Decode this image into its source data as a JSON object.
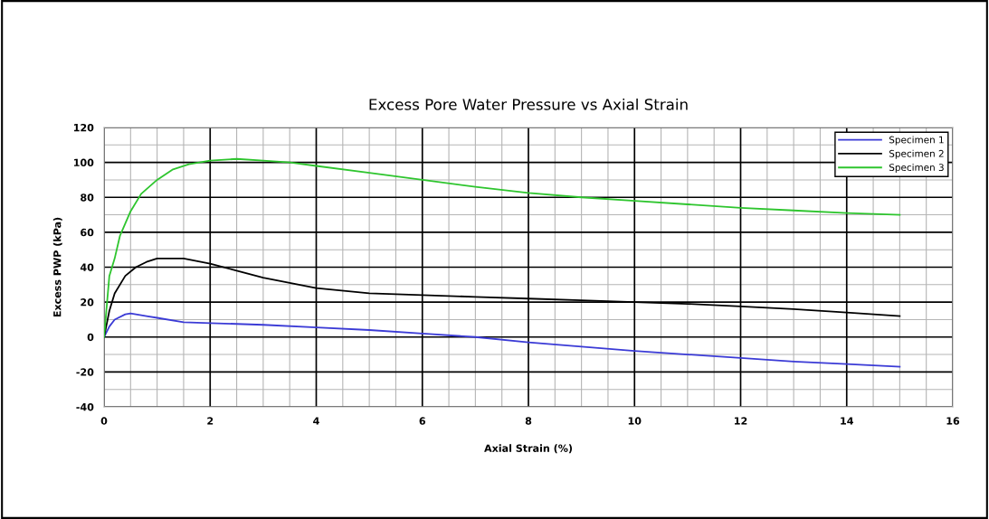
{
  "chart_data": {
    "type": "line",
    "title": "Excess Pore Water Pressure vs Axial Strain",
    "xlabel": "Axial Strain (%)",
    "ylabel": "Excess PWP (kPa)",
    "xlim": [
      0,
      16
    ],
    "xticks": [
      0,
      2,
      4,
      6,
      8,
      10,
      12,
      14,
      16
    ],
    "ylim": [
      -40,
      120
    ],
    "yticks": [
      -40,
      -20,
      0,
      20,
      40,
      60,
      80,
      100,
      120
    ],
    "grid": true,
    "legend": "top right",
    "marker": "none",
    "line_style": "solid",
    "series": [
      {
        "name": "Specimen 1",
        "color": "#3b3bd6",
        "x": [
          0,
          0.1,
          0.2,
          0.4,
          0.5,
          0.8,
          1,
          1.5,
          2,
          3,
          4,
          5,
          6,
          7,
          8,
          9,
          10,
          11,
          12,
          13,
          14,
          15
        ],
        "values": [
          0,
          6,
          10,
          13,
          13.5,
          12,
          11,
          8.5,
          8,
          7,
          5.5,
          4,
          2,
          0,
          -3,
          -5.5,
          -8,
          -10,
          -12,
          -14,
          -15.5,
          -17
        ]
      },
      {
        "name": "Specimen 2",
        "color": "#000000",
        "x": [
          0,
          0.1,
          0.2,
          0.4,
          0.6,
          0.8,
          1,
          1.5,
          2,
          2.5,
          3,
          3.5,
          4,
          5,
          6,
          7,
          8,
          9,
          10,
          11,
          12,
          13,
          14,
          15
        ],
        "values": [
          0,
          15,
          25,
          35,
          40,
          43,
          45,
          45,
          42,
          38,
          34,
          31,
          28,
          25,
          24,
          23,
          22,
          21,
          20,
          19,
          17.5,
          16,
          14,
          12
        ]
      },
      {
        "name": "Specimen 3",
        "color": "#2ec52e",
        "x": [
          0,
          0.1,
          0.2,
          0.3,
          0.5,
          0.7,
          1,
          1.3,
          1.6,
          2,
          2.5,
          3,
          3.5,
          4,
          5,
          6,
          7,
          8,
          9,
          10,
          11,
          12,
          13,
          14,
          15
        ],
        "values": [
          0,
          35,
          45,
          58,
          72,
          82,
          90,
          96,
          99,
          101,
          102,
          101,
          100,
          98,
          94,
          90,
          86,
          82.5,
          80,
          78,
          76,
          74,
          72.5,
          71,
          70
        ]
      }
    ]
  }
}
